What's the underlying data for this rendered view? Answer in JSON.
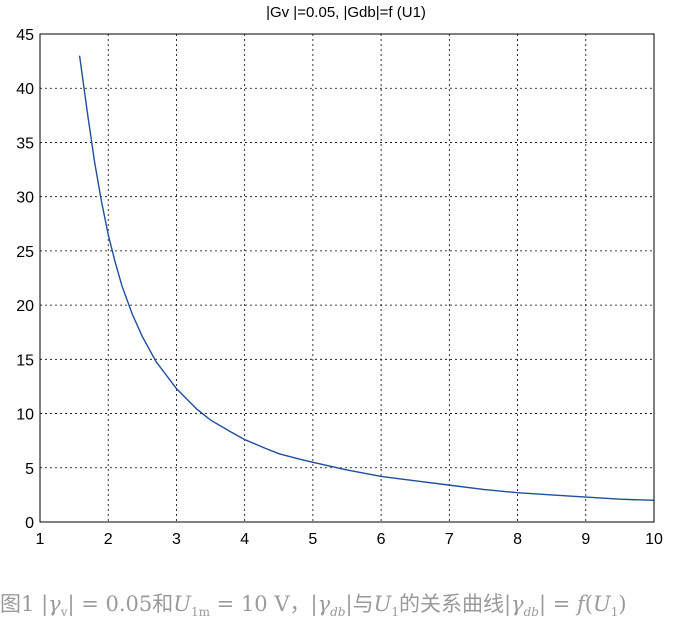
{
  "chart_data": {
    "type": "line",
    "title": "|Gv |=0.05, |Gdb|=f (U1)",
    "xlabel": "",
    "ylabel": "",
    "xlim": [
      1,
      10
    ],
    "ylim": [
      0,
      45
    ],
    "xticks": [
      "1",
      "2",
      "3",
      "4",
      "5",
      "6",
      "7",
      "8",
      "9",
      "10"
    ],
    "yticks": [
      "0",
      "5",
      "10",
      "15",
      "20",
      "25",
      "30",
      "35",
      "40",
      "45"
    ],
    "grid": true,
    "line_color": "#1f4e9c",
    "series": [
      {
        "x": [
          1.58,
          1.7,
          1.8,
          1.9,
          2.0,
          2.1,
          2.2,
          2.35,
          2.5,
          2.7,
          3.0,
          3.3,
          3.5,
          3.8,
          4.0,
          4.3,
          4.5,
          4.8,
          5.0,
          5.5,
          6.0,
          6.5,
          7.0,
          7.5,
          8.0,
          8.5,
          9.0,
          9.5,
          10.0
        ],
        "y": [
          43.0,
          37.5,
          33.2,
          29.6,
          26.5,
          24.0,
          21.8,
          19.2,
          17.1,
          14.8,
          12.3,
          10.4,
          9.4,
          8.3,
          7.6,
          6.8,
          6.3,
          5.8,
          5.5,
          4.8,
          4.2,
          3.8,
          3.4,
          3.0,
          2.7,
          2.5,
          2.3,
          2.1,
          2.0
        ]
      }
    ]
  },
  "caption": {
    "fig_label": "图1",
    "abs_open_1": "|",
    "gamma_1": "γ",
    "sub_v": "v",
    "abs_close_1": "|",
    "eq_1": " = 0.05和",
    "u_1": "U",
    "sub_1m": "1m",
    "eq_2": " = 10 V，",
    "abs_open_2": "|",
    "gamma_2": "γ",
    "sub_db_1": "db",
    "abs_close_2": "|",
    "text_with": "与",
    "u_2": "U",
    "sub_1a": "1",
    "text_rel": "的关系曲线",
    "abs_open_3": "|",
    "gamma_3": "γ",
    "sub_db_2": "db",
    "abs_close_3": "|",
    "eq_3": " = ",
    "f": "f",
    "paren_open": "(",
    "u_3": "U",
    "sub_1b": "1",
    "paren_close": ")"
  }
}
